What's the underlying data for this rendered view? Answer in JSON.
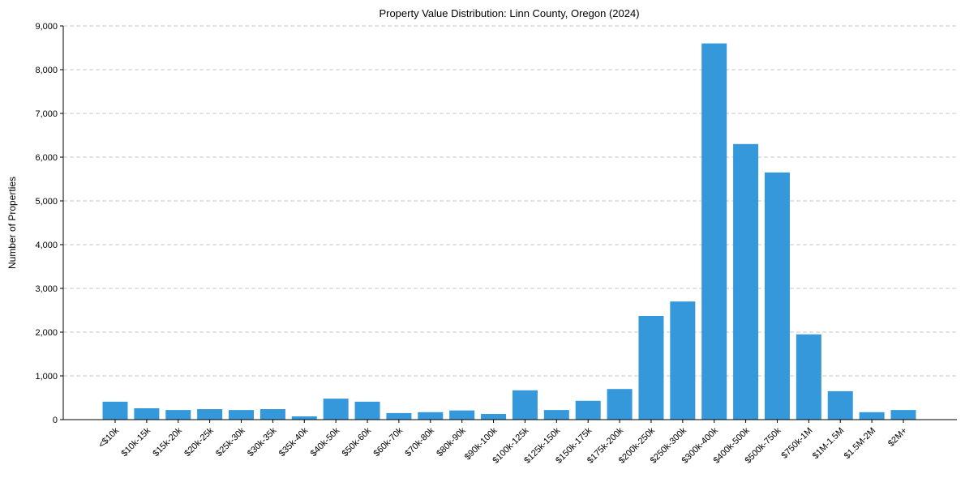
{
  "chart_data": {
    "type": "bar",
    "title": "Property Value Distribution: Linn County, Oregon (2024)",
    "xlabel": "",
    "ylabel": "Number of Properties",
    "ylim": [
      0,
      9000
    ],
    "yticks": [
      0,
      1000,
      2000,
      3000,
      4000,
      5000,
      6000,
      7000,
      8000,
      9000
    ],
    "ytick_labels": [
      "0",
      "1,000",
      "2,000",
      "3,000",
      "4,000",
      "5,000",
      "6,000",
      "7,000",
      "8,000",
      "9,000"
    ],
    "grid": "y-dashed",
    "bar_color": "#3498db",
    "categories": [
      "<$10k",
      "$10k-15k",
      "$15k-20k",
      "$20k-25k",
      "$25k-30k",
      "$30k-35k",
      "$35k-40k",
      "$40k-50k",
      "$50k-60k",
      "$60k-70k",
      "$70k-80k",
      "$80k-90k",
      "$90k-100k",
      "$100k-125k",
      "$125k-150k",
      "$150k-175k",
      "$175k-200k",
      "$200k-250k",
      "$250k-300k",
      "$300k-400k",
      "$400k-500k",
      "$500k-750k",
      "$750k-1M",
      "$1M-1.5M",
      "$1.5M-2M",
      "$2M+"
    ],
    "values": [
      410,
      260,
      220,
      240,
      220,
      240,
      75,
      480,
      410,
      150,
      170,
      210,
      130,
      670,
      220,
      430,
      700,
      2370,
      2700,
      8600,
      6300,
      5650,
      1950,
      650,
      170,
      220
    ]
  }
}
